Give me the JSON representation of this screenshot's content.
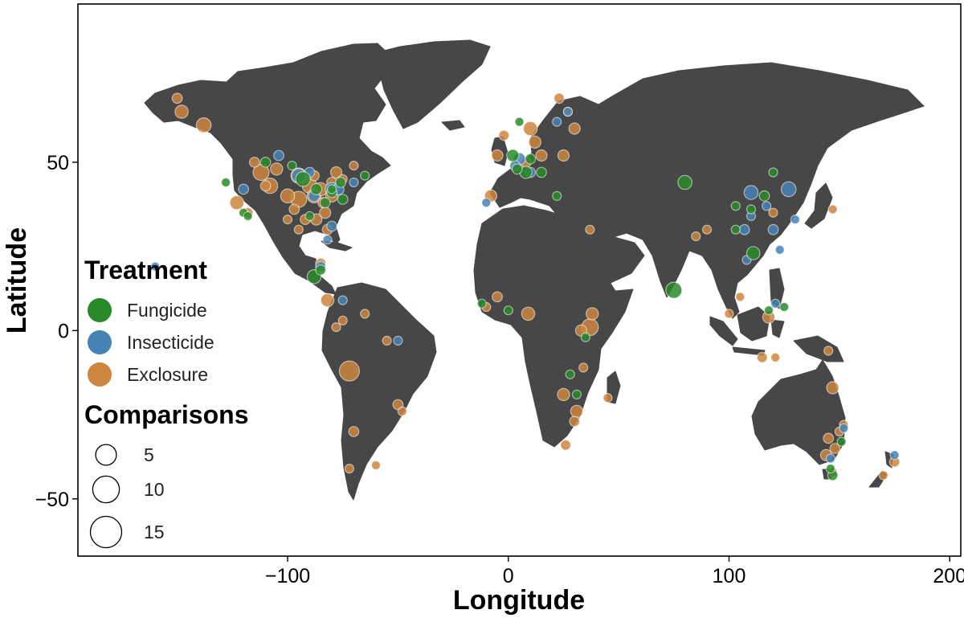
{
  "chart_data": {
    "type": "scatter",
    "title": "",
    "xlabel": "Longitude",
    "ylabel": "Latitude",
    "xlim": [
      -195,
      205
    ],
    "ylim": [
      -67,
      97
    ],
    "x_ticks": [
      -100,
      0,
      100,
      200
    ],
    "x_tick_labels": [
      "−100",
      "0",
      "100",
      "200"
    ],
    "y_ticks": [
      -50,
      0,
      50
    ],
    "y_tick_labels": [
      "−50",
      "0",
      "50"
    ],
    "grid": false,
    "legend_placement": "left",
    "legend": {
      "color_title": "Treatment",
      "color_entries": [
        {
          "name": "Fungicide",
          "color": "#2a8a2a"
        },
        {
          "name": "Insecticide",
          "color": "#4682b4"
        },
        {
          "name": "Exclosure",
          "color": "#cd853f"
        }
      ],
      "size_title": "Comparisons",
      "size_entries": [
        {
          "label": "5",
          "value": 5
        },
        {
          "label": "10",
          "value": 10
        },
        {
          "label": "15",
          "value": 15
        }
      ]
    },
    "colors": {
      "land": "#474747",
      "Fungicide": "#2a8a2a",
      "Insecticide": "#4682b4",
      "Exclosure": "#cd853f"
    },
    "series": [
      {
        "name": "Exclosure",
        "points": [
          [
            -150,
            69,
            3
          ],
          [
            -148,
            65,
            6
          ],
          [
            -138,
            61,
            8
          ],
          [
            -112,
            47,
            10
          ],
          [
            -108,
            43,
            9
          ],
          [
            -100,
            40,
            7
          ],
          [
            -95,
            39,
            10
          ],
          [
            -90,
            43,
            8
          ],
          [
            -88,
            40,
            7
          ],
          [
            -85,
            42,
            6
          ],
          [
            -80,
            40,
            5
          ],
          [
            -83,
            35,
            4
          ],
          [
            -87,
            33,
            4
          ],
          [
            -92,
            33,
            3
          ],
          [
            -78,
            47,
            4
          ],
          [
            -123,
            38,
            7
          ],
          [
            -118,
            35,
            3
          ],
          [
            -105,
            48,
            5
          ],
          [
            -115,
            50,
            3
          ],
          [
            -70,
            49,
            2
          ],
          [
            -95,
            46,
            9
          ],
          [
            -97,
            36,
            3
          ],
          [
            -80,
            44,
            3
          ],
          [
            -75,
            45,
            2
          ],
          [
            -110,
            43,
            3
          ],
          [
            -95,
            30,
            2
          ],
          [
            -100,
            33,
            2
          ],
          [
            -82,
            30,
            3
          ],
          [
            -88,
            46,
            3
          ],
          [
            -84,
            38,
            3
          ],
          [
            -82,
            9,
            6
          ],
          [
            -72,
            -12,
            17
          ],
          [
            -85,
            20,
            3
          ],
          [
            -70,
            -30,
            3
          ],
          [
            -60,
            -40,
            2
          ],
          [
            -50,
            -22,
            3
          ],
          [
            -48,
            -24,
            2
          ],
          [
            -65,
            5,
            2
          ],
          [
            -78,
            1,
            2
          ],
          [
            -72,
            -41,
            2
          ],
          [
            -55,
            -3,
            2
          ],
          [
            -75,
            3,
            2
          ],
          [
            -8,
            40,
            5
          ],
          [
            -5,
            52,
            4
          ],
          [
            10,
            60,
            7
          ],
          [
            12,
            56,
            5
          ],
          [
            15,
            52,
            4
          ],
          [
            25,
            52,
            4
          ],
          [
            30,
            60,
            4
          ],
          [
            8,
            50,
            3
          ],
          [
            -2,
            58,
            3
          ],
          [
            23,
            69,
            3
          ],
          [
            27,
            65,
            2
          ],
          [
            9,
            5,
            6
          ],
          [
            37,
            1,
            11
          ],
          [
            38,
            5,
            5
          ],
          [
            33,
            0,
            4
          ],
          [
            25,
            -19,
            5
          ],
          [
            31,
            -24,
            5
          ],
          [
            30,
            -27,
            3
          ],
          [
            26,
            -34,
            3
          ],
          [
            -5,
            10,
            3
          ],
          [
            -10,
            7,
            2
          ],
          [
            34,
            -11,
            2
          ],
          [
            45,
            -20,
            2
          ],
          [
            37,
            30,
            2
          ],
          [
            100,
            5,
            2
          ],
          [
            118,
            4,
            5
          ],
          [
            147,
            -17,
            5
          ],
          [
            145,
            -6,
            2
          ],
          [
            145,
            -32,
            3
          ],
          [
            148,
            -35,
            3
          ],
          [
            144,
            -37,
            4
          ],
          [
            152,
            -28,
            2
          ],
          [
            147,
            -42,
            2
          ],
          [
            175,
            -39,
            3
          ],
          [
            115,
            -8,
            3
          ],
          [
            90,
            30,
            2
          ],
          [
            150,
            -30,
            2
          ],
          [
            120,
            35,
            2
          ],
          [
            85,
            28,
            2
          ],
          [
            105,
            10,
            2
          ],
          [
            121,
            -8,
            2
          ],
          [
            170,
            -43,
            2
          ],
          [
            147,
            36,
            2
          ]
        ]
      },
      {
        "name": "Insecticide",
        "points": [
          [
            -95,
            46,
            7
          ],
          [
            -80,
            42,
            6
          ],
          [
            -88,
            40,
            4
          ],
          [
            -77,
            42,
            4
          ],
          [
            -90,
            47,
            3
          ],
          [
            -104,
            52,
            3
          ],
          [
            -120,
            42,
            3
          ],
          [
            -80,
            31,
            3
          ],
          [
            -85,
            19,
            3
          ],
          [
            -75,
            9,
            2
          ],
          [
            -50,
            -3,
            2
          ],
          [
            -160,
            19,
            2
          ],
          [
            -82,
            27,
            2
          ],
          [
            -70,
            44,
            2
          ],
          [
            5,
            51,
            5
          ],
          [
            10,
            47,
            3
          ],
          [
            3,
            49,
            3
          ],
          [
            27,
            65,
            2
          ],
          [
            22,
            62,
            2
          ],
          [
            -10,
            38,
            2
          ],
          [
            110,
            41,
            7
          ],
          [
            127,
            42,
            8
          ],
          [
            120,
            30,
            3
          ],
          [
            107,
            30,
            3
          ],
          [
            108,
            21,
            2
          ],
          [
            152,
            -29,
            2
          ],
          [
            146,
            -38,
            2
          ],
          [
            175,
            -37,
            2
          ],
          [
            123,
            24,
            2
          ],
          [
            117,
            37,
            2
          ],
          [
            110,
            34,
            2
          ],
          [
            130,
            33,
            2
          ],
          [
            121,
            8,
            2
          ]
        ]
      },
      {
        "name": "Fungicide",
        "points": [
          [
            -93,
            45,
            8
          ],
          [
            -87,
            42,
            4
          ],
          [
            -80,
            41,
            3
          ],
          [
            -76,
            44,
            3
          ],
          [
            -83,
            38,
            3
          ],
          [
            -90,
            34,
            2
          ],
          [
            -120,
            35,
            2
          ],
          [
            -110,
            50,
            3
          ],
          [
            -98,
            49,
            2
          ],
          [
            -75,
            39,
            3
          ],
          [
            -118,
            34,
            2
          ],
          [
            -65,
            46,
            2
          ],
          [
            -88,
            16,
            7
          ],
          [
            -85,
            18,
            3
          ],
          [
            -80,
            42,
            2
          ],
          [
            -128,
            44,
            2
          ],
          [
            2,
            52,
            5
          ],
          [
            8,
            47,
            5
          ],
          [
            15,
            47,
            3
          ],
          [
            10,
            51,
            3
          ],
          [
            4,
            48,
            3
          ],
          [
            -12,
            8,
            2
          ],
          [
            22,
            40,
            2
          ],
          [
            0,
            6,
            2
          ],
          [
            28,
            -13,
            2
          ],
          [
            31,
            -19,
            2
          ],
          [
            5,
            62,
            2
          ],
          [
            75,
            12,
            10
          ],
          [
            80,
            44,
            7
          ],
          [
            111,
            23,
            6
          ],
          [
            110,
            36,
            2
          ],
          [
            116,
            40,
            3
          ],
          [
            103,
            30,
            2
          ],
          [
            120,
            47,
            2
          ],
          [
            103,
            37,
            2
          ],
          [
            147,
            -43,
            3
          ],
          [
            146,
            -41,
            2
          ],
          [
            118,
            6,
            2
          ],
          [
            125,
            7,
            2
          ],
          [
            35,
            -2,
            2
          ],
          [
            151,
            -33,
            2
          ]
        ]
      }
    ]
  }
}
